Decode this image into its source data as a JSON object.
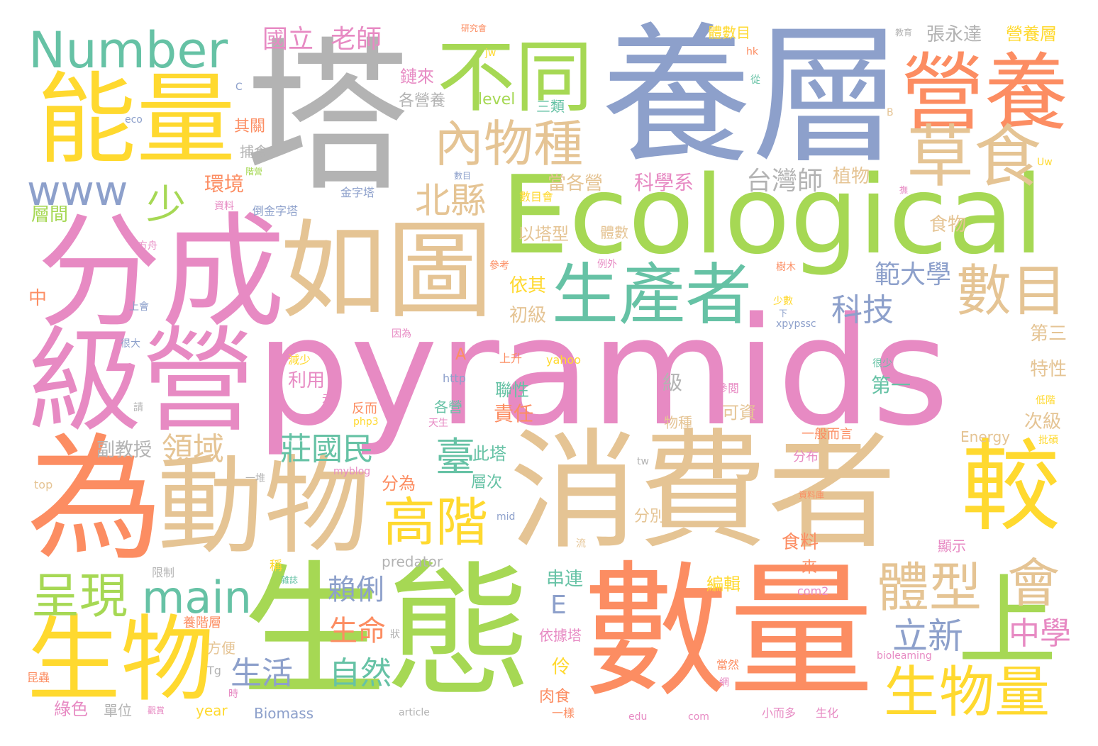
{
  "palette": {
    "pink": "#e78ac3",
    "orange": "#fc8d62",
    "green": "#a6d854",
    "yellow": "#ffd92f",
    "teal": "#66c2a5",
    "blue": "#8da0cb",
    "tan": "#e5c494",
    "gray": "#b3b3b3"
  },
  "words": [
    {
      "id": "pyramids",
      "text": "pyramids",
      "color": "pink"
    },
    {
      "id": "yang-ceng",
      "text": "養層",
      "color": "blue"
    },
    {
      "id": "ta",
      "text": "塔",
      "color": "gray"
    },
    {
      "id": "xiao-fei-zhe",
      "text": "消費者",
      "color": "tan"
    },
    {
      "id": "shu-liang",
      "text": "數量",
      "color": "orange"
    },
    {
      "id": "sheng-tai",
      "text": "生態",
      "color": "green"
    },
    {
      "id": "ecological",
      "text": "Ecological",
      "color": "green"
    },
    {
      "id": "fen-cheng",
      "text": "分成",
      "color": "pink"
    },
    {
      "id": "ru-tu",
      "text": "如圖",
      "color": "tan"
    },
    {
      "id": "ji-ying",
      "text": "級營",
      "color": "pink"
    },
    {
      "id": "wei",
      "text": "為",
      "color": "orange"
    },
    {
      "id": "dong-wu",
      "text": "動物",
      "color": "tan"
    },
    {
      "id": "sheng-wu",
      "text": "生物",
      "color": "yellow"
    },
    {
      "id": "neng-liang",
      "text": "能量",
      "color": "yellow"
    },
    {
      "id": "ying-yang",
      "text": "營養",
      "color": "orange"
    },
    {
      "id": "bu-tong",
      "text": "不同",
      "color": "green"
    },
    {
      "id": "number",
      "text": "Number",
      "color": "teal"
    },
    {
      "id": "sheng-chan-zhe",
      "text": "生產者",
      "color": "teal"
    },
    {
      "id": "jiao",
      "text": "較",
      "color": "yellow"
    },
    {
      "id": "cao-shi",
      "text": "草食",
      "color": "tan"
    },
    {
      "id": "shu-mu",
      "text": "數目",
      "color": "tan"
    },
    {
      "id": "nei-wu-zhong",
      "text": "內物種",
      "color": "tan"
    },
    {
      "id": "gao-jie",
      "text": "高階",
      "color": "yellow"
    },
    {
      "id": "shang",
      "text": "上",
      "color": "green"
    },
    {
      "id": "sheng-wu-liang",
      "text": "生物量",
      "color": "yellow"
    },
    {
      "id": "ti-xing",
      "text": "體型",
      "color": "tan"
    },
    {
      "id": "hui",
      "text": "會",
      "color": "tan"
    },
    {
      "id": "cheng-xian",
      "text": "呈現",
      "color": "green"
    },
    {
      "id": "main",
      "text": "main",
      "color": "teal"
    },
    {
      "id": "www",
      "text": "www",
      "color": "blue"
    },
    {
      "id": "shao",
      "text": "少",
      "color": "green"
    },
    {
      "id": "bei-xian",
      "text": "北縣",
      "color": "tan"
    },
    {
      "id": "zhuang-guo-min",
      "text": "莊國民",
      "color": "teal"
    },
    {
      "id": "ling-yu",
      "text": "領域",
      "color": "tan"
    },
    {
      "id": "tai",
      "text": "臺",
      "color": "teal"
    },
    {
      "id": "li-xin",
      "text": "立新",
      "color": "blue"
    },
    {
      "id": "zhong-xue",
      "text": "中學",
      "color": "pink"
    },
    {
      "id": "sheng-huo",
      "text": "生活",
      "color": "blue"
    },
    {
      "id": "zi-ran",
      "text": "自然",
      "color": "teal"
    },
    {
      "id": "sheng-ming",
      "text": "生命",
      "color": "orange"
    },
    {
      "id": "lai-li",
      "text": "賴俐",
      "color": "blue"
    },
    {
      "id": "ke-ji",
      "text": "科技",
      "color": "blue"
    },
    {
      "id": "fan-da-xue",
      "text": "範大學",
      "color": "blue"
    },
    {
      "id": "tai-wan-shi",
      "text": "台灣師",
      "color": "gray"
    },
    {
      "id": "guo-li",
      "text": "國立",
      "color": "pink"
    },
    {
      "id": "lao-shi",
      "text": "老師",
      "color": "pink"
    },
    {
      "id": "zhang-yong-da",
      "text": "張永達",
      "color": "gray"
    },
    {
      "id": "ying-yang-ceng",
      "text": "營養層",
      "color": "yellow"
    },
    {
      "id": "ti-shu-mu",
      "text": "體數目",
      "color": "yellow"
    },
    {
      "id": "lian-lai",
      "text": "鏈來",
      "color": "pink"
    },
    {
      "id": "ge-ying-yang",
      "text": "各營養",
      "color": "gray"
    },
    {
      "id": "level",
      "text": "level",
      "color": "green"
    },
    {
      "id": "san-lei",
      "text": "三類",
      "color": "teal"
    },
    {
      "id": "qi-guan",
      "text": "其關",
      "color": "orange"
    },
    {
      "id": "bu-shi",
      "text": "捕食",
      "color": "gray"
    },
    {
      "id": "huan-jing",
      "text": "環境",
      "color": "orange"
    },
    {
      "id": "ceng-jian",
      "text": "層間",
      "color": "green"
    },
    {
      "id": "dang-ge-ying",
      "text": "當各營",
      "color": "tan"
    },
    {
      "id": "ke-xue-xi",
      "text": "科學系",
      "color": "pink"
    },
    {
      "id": "zhi-wu",
      "text": "植物",
      "color": "tan"
    },
    {
      "id": "shi-wu",
      "text": "食物",
      "color": "tan"
    },
    {
      "id": "yi-ta-xing",
      "text": "以塔型",
      "color": "tan"
    },
    {
      "id": "ti-shu",
      "text": "體數",
      "color": "tan"
    },
    {
      "id": "yi-qi",
      "text": "依其",
      "color": "yellow"
    },
    {
      "id": "chu-ji",
      "text": "初級",
      "color": "tan"
    },
    {
      "id": "di-san",
      "text": "第三",
      "color": "tan"
    },
    {
      "id": "di-yi",
      "text": "第一",
      "color": "teal"
    },
    {
      "id": "te-xing",
      "text": "特性",
      "color": "tan"
    },
    {
      "id": "ci-ji",
      "text": "次級",
      "color": "tan"
    },
    {
      "id": "ji",
      "text": "級",
      "color": "gray"
    },
    {
      "id": "ke-zi",
      "text": "可資",
      "color": "tan"
    },
    {
      "id": "wu-zhong",
      "text": "物種",
      "color": "tan"
    },
    {
      "id": "lian-xing",
      "text": "聯性",
      "color": "teal"
    },
    {
      "id": "ze-ren",
      "text": "責任",
      "color": "orange"
    },
    {
      "id": "ge-ying",
      "text": "各營",
      "color": "teal"
    },
    {
      "id": "li-yong",
      "text": "利用",
      "color": "pink"
    },
    {
      "id": "fu-jiao-shou",
      "text": "副教授",
      "color": "gray"
    },
    {
      "id": "ci-ta",
      "text": "此塔",
      "color": "teal"
    },
    {
      "id": "fen-wei",
      "text": "分為",
      "color": "orange"
    },
    {
      "id": "ceng-ci",
      "text": "層次",
      "color": "teal"
    },
    {
      "id": "fen-bie",
      "text": "分別",
      "color": "tan"
    },
    {
      "id": "shi-liao",
      "text": "食料",
      "color": "orange"
    },
    {
      "id": "predator",
      "text": "predator",
      "color": "gray"
    },
    {
      "id": "energy",
      "text": "Energy",
      "color": "tan"
    },
    {
      "id": "chuan-lian",
      "text": "串連",
      "color": "teal"
    },
    {
      "id": "bian-ji",
      "text": "編輯",
      "color": "yellow"
    },
    {
      "id": "e",
      "text": "E",
      "color": "blue"
    },
    {
      "id": "ling",
      "text": "伶",
      "color": "yellow"
    },
    {
      "id": "yi-ju-ta",
      "text": "依據塔",
      "color": "pink"
    },
    {
      "id": "rou-shi",
      "text": "肉食",
      "color": "orange"
    },
    {
      "id": "lu-se",
      "text": "綠色",
      "color": "pink"
    },
    {
      "id": "dan-wei",
      "text": "單位",
      "color": "gray"
    },
    {
      "id": "year",
      "text": "year",
      "color": "yellow"
    },
    {
      "id": "biomass",
      "text": "Biomass",
      "color": "blue"
    },
    {
      "id": "fang-bian",
      "text": "方便",
      "color": "tan"
    },
    {
      "id": "yang-jie-ceng",
      "text": "養階層",
      "color": "orange"
    },
    {
      "id": "tg",
      "text": "Tg",
      "color": "gray"
    },
    {
      "id": "kun-chong",
      "text": "昆蟲",
      "color": "orange"
    },
    {
      "id": "xian-zhi",
      "text": "限制",
      "color": "gray"
    },
    {
      "id": "cheng",
      "text": "稱",
      "color": "yellow"
    },
    {
      "id": "lai",
      "text": "來",
      "color": "orange"
    },
    {
      "id": "com2",
      "text": "com2",
      "color": "pink"
    },
    {
      "id": "xian-shi",
      "text": "顯示",
      "color": "pink"
    },
    {
      "id": "fen-bu",
      "text": "分布",
      "color": "pink"
    },
    {
      "id": "yi-ban-er-yan",
      "text": "一般而言",
      "color": "orange"
    },
    {
      "id": "jin-zi-ta",
      "text": "金字塔",
      "color": "blue"
    },
    {
      "id": "ou-jin-zi-ta",
      "text": "倒金字塔",
      "color": "blue"
    },
    {
      "id": "zi-liao",
      "text": "資料",
      "color": "pink"
    },
    {
      "id": "fang-zhou",
      "text": "方舟",
      "color": "pink"
    },
    {
      "id": "zhong",
      "text": "中",
      "color": "orange"
    },
    {
      "id": "shang-hui",
      "text": "上會",
      "color": "blue"
    },
    {
      "id": "hen-da",
      "text": "很大",
      "color": "blue"
    },
    {
      "id": "qing",
      "text": "請",
      "color": "gray"
    },
    {
      "id": "jian-shao",
      "text": "減少",
      "color": "yellow"
    },
    {
      "id": "fan-er",
      "text": "反而",
      "color": "orange"
    },
    {
      "id": "php3",
      "text": "php3",
      "color": "yellow"
    },
    {
      "id": "myblog",
      "text": "myblog",
      "color": "pink"
    },
    {
      "id": "top",
      "text": "top",
      "color": "tan"
    },
    {
      "id": "yi-dui",
      "text": "一堆",
      "color": "gray"
    },
    {
      "id": "shang-sheng",
      "text": "上升",
      "color": "orange"
    },
    {
      "id": "http",
      "text": "http",
      "color": "blue"
    },
    {
      "id": "yahoo",
      "text": "yahoo",
      "color": "yellow"
    },
    {
      "id": "hen-shao",
      "text": "很少",
      "color": "teal"
    },
    {
      "id": "can-yue",
      "text": "參閱",
      "color": "pink"
    },
    {
      "id": "xpypssc",
      "text": "xpypssc",
      "color": "blue"
    },
    {
      "id": "yin-wei",
      "text": "因為",
      "color": "pink"
    },
    {
      "id": "shao-shu",
      "text": "少數",
      "color": "yellow"
    },
    {
      "id": "li-wai",
      "text": "例外",
      "color": "pink"
    },
    {
      "id": "can-kao",
      "text": "參考",
      "color": "orange"
    },
    {
      "id": "shu-mu-hui",
      "text": "數目會",
      "color": "yellow"
    },
    {
      "id": "shu-mu2",
      "text": "樹木",
      "color": "orange"
    },
    {
      "id": "di-jie",
      "text": "低階",
      "color": "yellow"
    },
    {
      "id": "pi-shuo",
      "text": "批碩",
      "color": "yellow"
    },
    {
      "id": "bioleaming",
      "text": "bioleaming",
      "color": "pink"
    },
    {
      "id": "sheng-hua",
      "text": "生化",
      "color": "pink"
    },
    {
      "id": "xiao-er-duo",
      "text": "小而多",
      "color": "pink"
    },
    {
      "id": "edu",
      "text": "edu",
      "color": "pink"
    },
    {
      "id": "com",
      "text": "com",
      "color": "pink"
    },
    {
      "id": "article",
      "text": "article",
      "color": "gray"
    },
    {
      "id": "yi-yang",
      "text": "一樣",
      "color": "orange"
    },
    {
      "id": "tw",
      "text": "tw",
      "color": "gray"
    },
    {
      "id": "dang-ran",
      "text": "當然",
      "color": "orange"
    },
    {
      "id": "wang",
      "text": "網",
      "color": "pink"
    },
    {
      "id": "zhuang",
      "text": "狀",
      "color": "gray"
    },
    {
      "id": "liu",
      "text": "流",
      "color": "tan"
    },
    {
      "id": "mid",
      "text": "mid",
      "color": "blue"
    },
    {
      "id": "a",
      "text": "A",
      "color": "orange"
    },
    {
      "id": "tian-sheng",
      "text": "天生",
      "color": "pink"
    },
    {
      "id": "yuan",
      "text": "元",
      "color": "pink"
    },
    {
      "id": "eco",
      "text": "eco",
      "color": "blue"
    },
    {
      "id": "c",
      "text": "C",
      "color": "blue"
    },
    {
      "id": "jw",
      "text": "jw",
      "color": "yellow"
    },
    {
      "id": "hk",
      "text": "hk",
      "color": "orange"
    },
    {
      "id": "cong",
      "text": "從",
      "color": "teal"
    },
    {
      "id": "b",
      "text": "B",
      "color": "tan"
    },
    {
      "id": "uw",
      "text": "Uw",
      "color": "yellow"
    },
    {
      "id": "jiao-yu",
      "text": "教育",
      "color": "gray"
    },
    {
      "id": "yan-jiu-hui",
      "text": "研究會",
      "color": "orange"
    },
    {
      "id": "jie-ying",
      "text": "階營",
      "color": "green"
    },
    {
      "id": "shu-jing",
      "text": "數目",
      "color": "blue"
    },
    {
      "id": "fu",
      "text": "撫",
      "color": "pink"
    },
    {
      "id": "zi-liao-ku",
      "text": "資料庫",
      "color": "orange"
    },
    {
      "id": "xia",
      "text": "下",
      "color": "blue"
    },
    {
      "id": "zhao-ming",
      "text": "雜誌",
      "color": "teal"
    },
    {
      "id": "guan-shang",
      "text": "觀賞",
      "color": "pink"
    },
    {
      "id": "shi",
      "text": "時",
      "color": "pink"
    }
  ]
}
